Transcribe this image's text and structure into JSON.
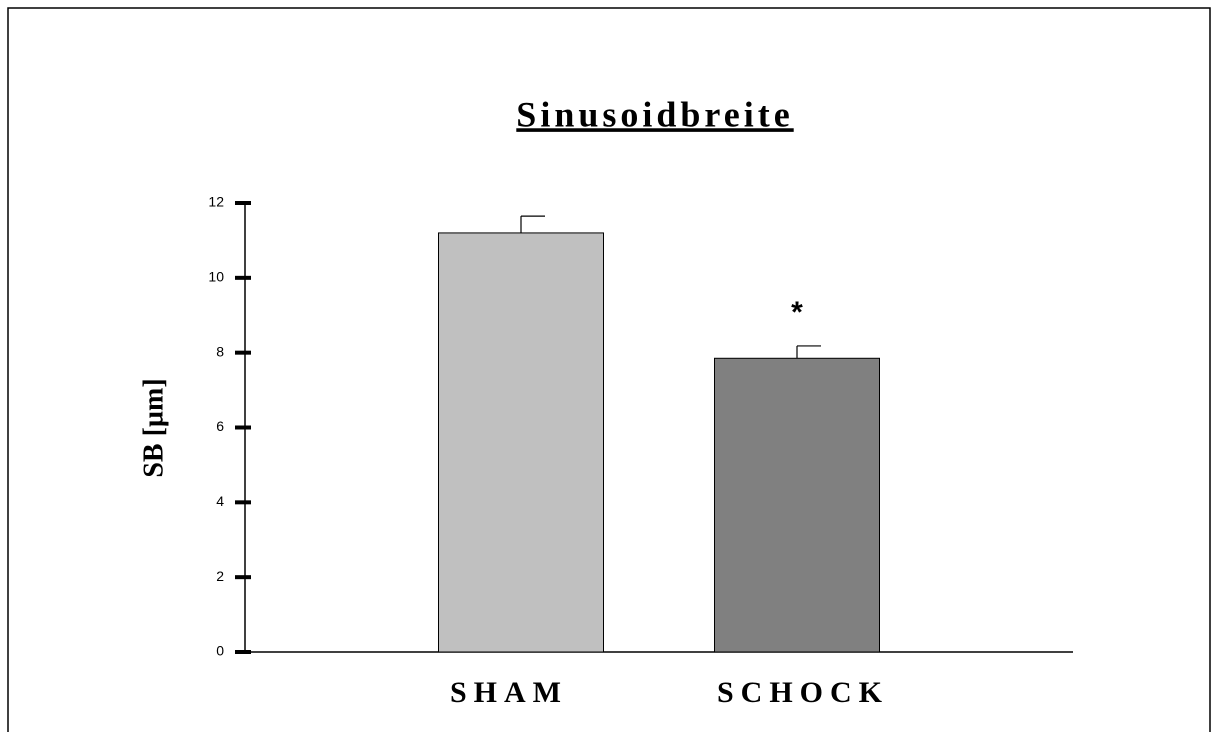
{
  "chart_data": {
    "type": "bar",
    "title": "Sinusoidbreite",
    "ylabel": "SB [µm]",
    "categories": [
      "SHAM",
      "SCHOCK"
    ],
    "values": [
      11.2,
      7.85
    ],
    "errors": [
      0.45,
      0.33
    ],
    "colors": [
      "#c0c0c0",
      "#808080"
    ],
    "ylim": [
      0,
      12
    ],
    "yticks": [
      0,
      2,
      4,
      6,
      8,
      10,
      12
    ],
    "annotations": [
      {
        "text": "*",
        "category": 1
      }
    ]
  }
}
